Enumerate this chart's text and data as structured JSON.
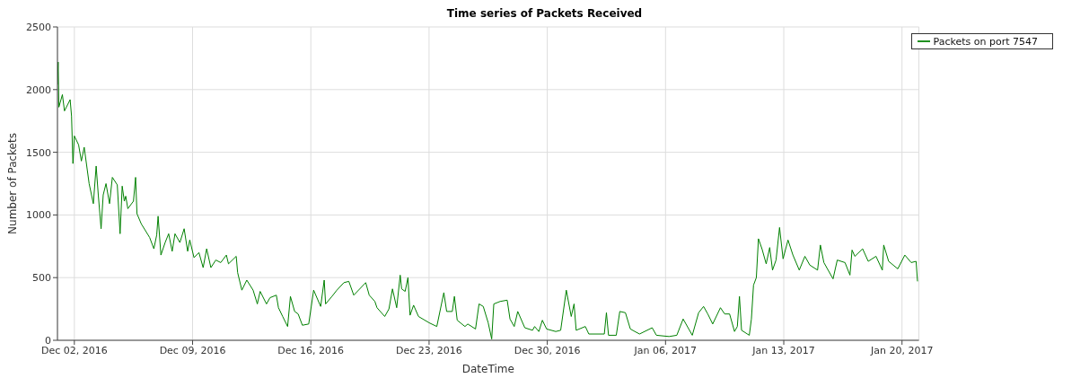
{
  "chart_data": {
    "type": "line",
    "title": "Time series of Packets Received",
    "xlabel": "DateTime",
    "ylabel": "Number of Packets",
    "xlim": [
      "2016-12-01",
      "2017-01-21"
    ],
    "xticks": [
      {
        "value": "2016-12-02",
        "label": "Dec 02, 2016"
      },
      {
        "value": "2016-12-09",
        "label": "Dec 09, 2016"
      },
      {
        "value": "2016-12-16",
        "label": "Dec 16, 2016"
      },
      {
        "value": "2016-12-23",
        "label": "Dec 23, 2016"
      },
      {
        "value": "2016-12-30",
        "label": "Dec 30, 2016"
      },
      {
        "value": "2017-01-06",
        "label": "Jan 06, 2017"
      },
      {
        "value": "2017-01-13",
        "label": "Jan 13, 2017"
      },
      {
        "value": "2017-01-20",
        "label": "Jan 20, 2017"
      }
    ],
    "ylim": [
      0,
      2500
    ],
    "yticks": [
      0,
      500,
      1000,
      1500,
      2000,
      2500
    ],
    "grid": true,
    "legend": "top right",
    "x": [
      "2016-12-01T00:00",
      "2016-12-01T01:00",
      "2016-12-01T02:00",
      "2016-12-01T07:00",
      "2016-12-01T10:00",
      "2016-12-01T18:00",
      "2016-12-01T20:00",
      "2016-12-01T22:00",
      "2016-12-02T00:00",
      "2016-12-02T06:00",
      "2016-12-02T10:00",
      "2016-12-02T14:00",
      "2016-12-02T21:00",
      "2016-12-03T03:00",
      "2016-12-03T07:00",
      "2016-12-03T10:00",
      "2016-12-03T14:00",
      "2016-12-03T17:00",
      "2016-12-03T21:00",
      "2016-12-04T02:00",
      "2016-12-04T06:00",
      "2016-12-04T13:00",
      "2016-12-04T17:00",
      "2016-12-04T20:00",
      "2016-12-04T23:00",
      "2016-12-05T01:00",
      "2016-12-05T04:00",
      "2016-12-05T12:00",
      "2016-12-05T15:00",
      "2016-12-05T17:00",
      "2016-12-05T23:00",
      "2016-12-06T11:00",
      "2016-12-06T17:00",
      "2016-12-06T21:00",
      "2016-12-06T23:00",
      "2016-12-07T03:00",
      "2016-12-07T09:00",
      "2016-12-07T14:00",
      "2016-12-07T19:00",
      "2016-12-07T23:00",
      "2016-12-08T06:00",
      "2016-12-08T12:00",
      "2016-12-08T17:00",
      "2016-12-08T20:00",
      "2016-12-09T02:00",
      "2016-12-09T09:00",
      "2016-12-09T15:00",
      "2016-12-09T20:00",
      "2016-12-10T02:00",
      "2016-12-10T09:00",
      "2016-12-10T16:00",
      "2016-12-11T00:00",
      "2016-12-11T03:00",
      "2016-12-11T14:00",
      "2016-12-11T16:00",
      "2016-12-11T22:00",
      "2016-12-12T05:00",
      "2016-12-12T14:00",
      "2016-12-12T20:00",
      "2016-12-13T00:00",
      "2016-12-13T09:00",
      "2016-12-13T14:00",
      "2016-12-13T23:00",
      "2016-12-14T02:00",
      "2016-12-14T08:00",
      "2016-12-14T15:00",
      "2016-12-14T19:00",
      "2016-12-15T01:00",
      "2016-12-15T06:00",
      "2016-12-15T12:00",
      "2016-12-15T21:00",
      "2016-12-16T04:00",
      "2016-12-16T14:00",
      "2016-12-16T19:00",
      "2016-12-16T21:00",
      "2016-12-17T06:00",
      "2016-12-17T13:00",
      "2016-12-17T23:00",
      "2016-12-18T06:00",
      "2016-12-18T13:00",
      "2016-12-19T06:00",
      "2016-12-19T11:00",
      "2016-12-19T19:00",
      "2016-12-19T22:00",
      "2016-12-20T09:00",
      "2016-12-20T15:00",
      "2016-12-20T20:00",
      "2016-12-21T02:00",
      "2016-12-21T07:00",
      "2016-12-21T09:00",
      "2016-12-21T14:00",
      "2016-12-21T18:00",
      "2016-12-21T21:00",
      "2016-12-22T02:00",
      "2016-12-22T09:00",
      "2016-12-23T00:00",
      "2016-12-23T11:00",
      "2016-12-23T21:00",
      "2016-12-24T01:00",
      "2016-12-24T09:00",
      "2016-12-24T12:00",
      "2016-12-24T16:00",
      "2016-12-25T03:00",
      "2016-12-25T07:00",
      "2016-12-25T18:00",
      "2016-12-25T23:00",
      "2016-12-26T05:00",
      "2016-12-26T12:00",
      "2016-12-26T17:00",
      "2016-12-26T20:00",
      "2016-12-27T05:00",
      "2016-12-27T15:00",
      "2016-12-27T19:00",
      "2016-12-28T01:00",
      "2016-12-28T06:00",
      "2016-12-28T16:00",
      "2016-12-29T03:00",
      "2016-12-29T06:00",
      "2016-12-29T12:00",
      "2016-12-29T17:00",
      "2016-12-29T23:00",
      "2016-12-30T12:00",
      "2016-12-30T19:00",
      "2016-12-31T03:00",
      "2016-12-31T10:00",
      "2016-12-31T14:00",
      "2016-12-31T17:00",
      "2017-01-01T06:00",
      "2017-01-01T11:00",
      "2017-01-02T09:00",
      "2017-01-02T12:00",
      "2017-01-02T15:00",
      "2017-01-03T02:00",
      "2017-01-03T07:00",
      "2017-01-03T15:00",
      "2017-01-03T22:00",
      "2017-01-04T11:00",
      "2017-01-05T05:00",
      "2017-01-05T11:00",
      "2017-01-06T05:00",
      "2017-01-06T16:00",
      "2017-01-07T01:00",
      "2017-01-07T14:00",
      "2017-01-07T23:00",
      "2017-01-08T06:00",
      "2017-01-08T12:00",
      "2017-01-08T19:00",
      "2017-01-09T06:00",
      "2017-01-09T12:00",
      "2017-01-09T19:00",
      "2017-01-10T02:00",
      "2017-01-10T06:00",
      "2017-01-10T09:00",
      "2017-01-10T12:00",
      "2017-01-10T23:00",
      "2017-01-11T02:00",
      "2017-01-11T05:00",
      "2017-01-11T09:00",
      "2017-01-11T12:00",
      "2017-01-11T17:00",
      "2017-01-11T23:00",
      "2017-01-12T04:00",
      "2017-01-12T08:00",
      "2017-01-12T13:00",
      "2017-01-12T18:00",
      "2017-01-12T23:00",
      "2017-01-13T06:00",
      "2017-01-13T13:00",
      "2017-01-13T22:00",
      "2017-01-14T06:00",
      "2017-01-14T13:00",
      "2017-01-15T00:00",
      "2017-01-15T04:00",
      "2017-01-15T09:00",
      "2017-01-15T22:00",
      "2017-01-16T04:00",
      "2017-01-16T15:00",
      "2017-01-16T22:00",
      "2017-01-17T01:00",
      "2017-01-17T05:00",
      "2017-01-17T16:00",
      "2017-01-18T00:00",
      "2017-01-18T11:00",
      "2017-01-18T20:00",
      "2017-01-18T22:00",
      "2017-01-19T05:00",
      "2017-01-19T18:00",
      "2017-01-20T04:00",
      "2017-01-20T13:00",
      "2017-01-20T20:00",
      "2017-01-20T22:00"
    ],
    "series": [
      {
        "name": "Packets on port 7547",
        "color": "#008000",
        "values": [
          2040,
          2220,
          1860,
          1960,
          1830,
          1920,
          1790,
          1410,
          1630,
          1560,
          1430,
          1540,
          1250,
          1090,
          1390,
          1160,
          890,
          1160,
          1250,
          1090,
          1300,
          1240,
          850,
          1230,
          1110,
          1150,
          1050,
          1110,
          1300,
          1010,
          930,
          820,
          730,
          840,
          990,
          680,
          780,
          850,
          710,
          850,
          780,
          890,
          710,
          800,
          660,
          700,
          580,
          730,
          580,
          640,
          620,
          680,
          610,
          670,
          540,
          400,
          480,
          400,
          290,
          390,
          290,
          340,
          360,
          260,
          190,
          110,
          350,
          230,
          210,
          120,
          130,
          400,
          270,
          480,
          290,
          350,
          400,
          460,
          470,
          360,
          460,
          360,
          310,
          260,
          190,
          250,
          410,
          260,
          520,
          410,
          390,
          500,
          200,
          280,
          190,
          140,
          110,
          380,
          230,
          230,
          350,
          160,
          110,
          130,
          90,
          290,
          270,
          140,
          10,
          290,
          310,
          320,
          170,
          110,
          230,
          100,
          80,
          110,
          70,
          160,
          90,
          70,
          80,
          400,
          190,
          290,
          80,
          110,
          50,
          50,
          220,
          40,
          40,
          230,
          220,
          90,
          50,
          100,
          40,
          30,
          40,
          170,
          40,
          220,
          270,
          210,
          130,
          260,
          210,
          210,
          70,
          110,
          350,
          80,
          40,
          170,
          440,
          500,
          810,
          730,
          610,
          740,
          560,
          640,
          900,
          650,
          800,
          680,
          560,
          670,
          600,
          560,
          760,
          620,
          490,
          640,
          620,
          520,
          720,
          670,
          730,
          630,
          670,
          560,
          760,
          630,
          570,
          680,
          620,
          630,
          470
        ]
      }
    ]
  }
}
